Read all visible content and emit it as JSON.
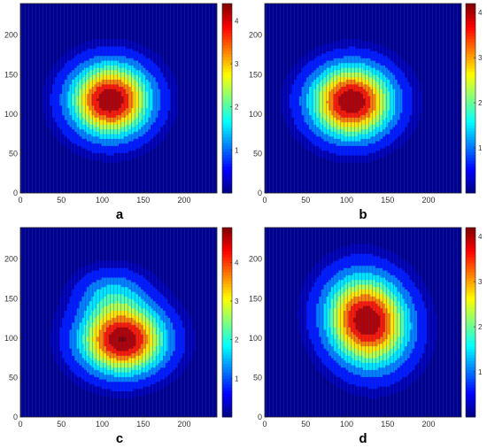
{
  "chart_data": [
    {
      "type": "heatmap",
      "subtype": "filled-contour",
      "panel_label": "a",
      "colormap": "jet",
      "xlim": [
        0,
        240
      ],
      "ylim": [
        0,
        240
      ],
      "x_ticks": [
        0,
        50,
        100,
        150,
        200
      ],
      "y_ticks": [
        0,
        50,
        100,
        150,
        200
      ],
      "colorbar": {
        "range": [
          0,
          4.4
        ],
        "ticks": [
          1,
          2,
          3,
          4
        ]
      },
      "blobs": [
        {
          "cx": 110,
          "cy": 118,
          "sx": 34,
          "sy": 32,
          "peak": 4.4,
          "angle": 0
        }
      ]
    },
    {
      "type": "heatmap",
      "subtype": "filled-contour",
      "panel_label": "b",
      "colormap": "jet",
      "xlim": [
        0,
        240
      ],
      "ylim": [
        0,
        240
      ],
      "x_ticks": [
        0,
        50,
        100,
        150,
        200
      ],
      "y_ticks": [
        0,
        50,
        100,
        150,
        200
      ],
      "colorbar": {
        "range": [
          0,
          4.2
        ],
        "ticks": [
          1,
          2,
          3,
          4
        ]
      },
      "blobs": [
        {
          "cx": 106,
          "cy": 116,
          "sx": 35,
          "sy": 32,
          "peak": 4.2,
          "angle": 0
        }
      ]
    },
    {
      "type": "heatmap",
      "subtype": "filled-contour",
      "panel_label": "c",
      "colormap": "jet",
      "xlim": [
        0,
        240
      ],
      "ylim": [
        0,
        240
      ],
      "x_ticks": [
        0,
        50,
        100,
        150,
        200
      ],
      "y_ticks": [
        0,
        50,
        100,
        150,
        200
      ],
      "colorbar": {
        "range": [
          0,
          4.9
        ],
        "ticks": [
          1,
          2,
          3,
          4
        ]
      },
      "blobs": [
        {
          "cx": 125,
          "cy": 98,
          "sx": 36,
          "sy": 30,
          "peak": 4.9,
          "angle": 0
        },
        {
          "cx": 112,
          "cy": 158,
          "sx": 30,
          "sy": 22,
          "peak": 1.3,
          "angle": 0
        }
      ]
    },
    {
      "type": "heatmap",
      "subtype": "filled-contour",
      "panel_label": "d",
      "colormap": "jet",
      "xlim": [
        0,
        240
      ],
      "ylim": [
        0,
        240
      ],
      "x_ticks": [
        0,
        50,
        100,
        150,
        200
      ],
      "y_ticks": [
        0,
        50,
        100,
        150,
        200
      ],
      "colorbar": {
        "range": [
          0,
          4.2
        ],
        "ticks": [
          1,
          2,
          3,
          4
        ]
      },
      "blobs": [
        {
          "cx": 125,
          "cy": 122,
          "sx": 34,
          "sy": 40,
          "peak": 4.2,
          "angle": 0.3
        }
      ]
    }
  ]
}
